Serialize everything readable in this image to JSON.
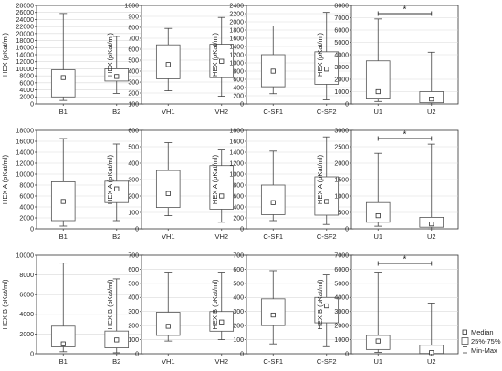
{
  "legend": {
    "items": [
      {
        "label": "Median",
        "symbol": "square"
      },
      {
        "label": "25%-75%",
        "symbol": "box"
      },
      {
        "label": "Min-Max",
        "symbol": "whisker"
      }
    ],
    "placement": "bottom-right"
  },
  "chart_data": [
    {
      "type": "box",
      "ylabel": "HEX (pKat/ml)",
      "ylim": [
        0,
        28000
      ],
      "yticks": [
        0,
        2000,
        4000,
        6000,
        8000,
        10000,
        12000,
        14000,
        16000,
        18000,
        20000,
        22000,
        24000,
        26000,
        28000
      ],
      "categories": [
        "B1",
        "B2"
      ],
      "grid": true,
      "series": [
        {
          "min": 1000,
          "q1": 2000,
          "median": 7500,
          "q3": 9700,
          "max": 25700
        },
        {
          "min": 3000,
          "q1": 6500,
          "median": 7800,
          "q3": 10000,
          "max": 19200
        }
      ]
    },
    {
      "type": "box",
      "ylabel": "HEX (pKat/ml)",
      "ylim": [
        100,
        1000
      ],
      "yticks": [
        100,
        200,
        300,
        400,
        500,
        600,
        700,
        800,
        900,
        1000
      ],
      "categories": [
        "VH1",
        "VH2"
      ],
      "grid": true,
      "series": [
        {
          "min": 220,
          "q1": 330,
          "median": 460,
          "q3": 640,
          "max": 790
        },
        {
          "min": 170,
          "q1": 340,
          "median": 490,
          "q3": 645,
          "max": 890
        }
      ]
    },
    {
      "type": "box",
      "ylabel": "HEX (pKat/ml)",
      "ylim": [
        0,
        2400
      ],
      "yticks": [
        0,
        200,
        400,
        600,
        800,
        1000,
        1200,
        1400,
        1600,
        1800,
        2000,
        2200,
        2400
      ],
      "categories": [
        "C-SF1",
        "C-SF2"
      ],
      "grid": true,
      "series": [
        {
          "min": 250,
          "q1": 420,
          "median": 800,
          "q3": 1200,
          "max": 1900
        },
        {
          "min": 100,
          "q1": 480,
          "median": 850,
          "q3": 1270,
          "max": 2230
        }
      ]
    },
    {
      "type": "box",
      "ylabel": "HEX (pKat/ml)",
      "ylim": [
        0,
        8000
      ],
      "yticks": [
        0,
        1000,
        2000,
        3000,
        4000,
        5000,
        6000,
        7000,
        8000
      ],
      "categories": [
        "U1",
        "U2"
      ],
      "grid": true,
      "significance": "*",
      "series": [
        {
          "min": 200,
          "q1": 400,
          "median": 1000,
          "q3": 3500,
          "max": 6900
        },
        {
          "min": 0,
          "q1": 100,
          "median": 400,
          "q3": 1000,
          "max": 4200
        }
      ]
    },
    {
      "type": "box",
      "ylabel": "HEX A (pKat/ml)",
      "ylim": [
        0,
        18000
      ],
      "yticks": [
        0,
        2000,
        4000,
        6000,
        8000,
        10000,
        12000,
        14000,
        16000,
        18000
      ],
      "categories": [
        "B1",
        "B2"
      ],
      "grid": true,
      "series": [
        {
          "min": 500,
          "q1": 1500,
          "median": 5000,
          "q3": 8600,
          "max": 16500
        },
        {
          "min": 1500,
          "q1": 4800,
          "median": 7300,
          "q3": 8700,
          "max": 15500
        }
      ]
    },
    {
      "type": "box",
      "ylabel": "HEX A (pKat/ml)",
      "ylim": [
        0,
        600
      ],
      "yticks": [
        0,
        100,
        200,
        300,
        400,
        500,
        600
      ],
      "categories": [
        "VH1",
        "VH2"
      ],
      "grid": true,
      "series": [
        {
          "min": 80,
          "q1": 130,
          "median": 215,
          "q3": 355,
          "max": 525
        },
        {
          "min": 40,
          "q1": 120,
          "median": 200,
          "q3": 385,
          "max": 480
        }
      ]
    },
    {
      "type": "box",
      "ylabel": "HEX A (pKat/ml)",
      "ylim": [
        0,
        1800
      ],
      "yticks": [
        0,
        200,
        400,
        600,
        800,
        1000,
        1200,
        1400,
        1600,
        1800
      ],
      "categories": [
        "C-SF1",
        "C-SF2"
      ],
      "grid": true,
      "series": [
        {
          "min": 150,
          "q1": 260,
          "median": 480,
          "q3": 800,
          "max": 1420
        },
        {
          "min": 80,
          "q1": 250,
          "median": 500,
          "q3": 950,
          "max": 1680
        }
      ]
    },
    {
      "type": "box",
      "ylabel": "HEX A (pKat/ml)",
      "ylim": [
        0,
        3000
      ],
      "yticks": [
        0,
        500,
        1000,
        1500,
        2000,
        2500,
        3000
      ],
      "categories": [
        "U1",
        "U2"
      ],
      "grid": true,
      "significance": "*",
      "series": [
        {
          "min": 80,
          "q1": 200,
          "median": 400,
          "q3": 800,
          "max": 2300
        },
        {
          "min": 0,
          "q1": 50,
          "median": 150,
          "q3": 350,
          "max": 2580
        }
      ]
    },
    {
      "type": "box",
      "ylabel": "HEX B (pKat/ml)",
      "ylim": [
        0,
        10000
      ],
      "yticks": [
        0,
        2000,
        4000,
        6000,
        8000,
        10000
      ],
      "categories": [
        "B1",
        "B2"
      ],
      "grid": true,
      "series": [
        {
          "min": 200,
          "q1": 700,
          "median": 1000,
          "q3": 2800,
          "max": 9200
        },
        {
          "min": 100,
          "q1": 600,
          "median": 1400,
          "q3": 2300,
          "max": 7600
        }
      ]
    },
    {
      "type": "box",
      "ylabel": "HEX B (pKat/ml)",
      "ylim": [
        0,
        700
      ],
      "yticks": [
        0,
        100,
        200,
        300,
        400,
        500,
        600,
        700
      ],
      "categories": [
        "VH1",
        "VH2"
      ],
      "grid": true,
      "series": [
        {
          "min": 90,
          "q1": 130,
          "median": 195,
          "q3": 295,
          "max": 580
        },
        {
          "min": 100,
          "q1": 160,
          "median": 225,
          "q3": 300,
          "max": 580
        }
      ]
    },
    {
      "type": "box",
      "ylabel": "HEX B (pKat/ml)",
      "ylim": [
        0,
        700
      ],
      "yticks": [
        0,
        100,
        200,
        300,
        400,
        500,
        600,
        700
      ],
      "categories": [
        "C-SF1",
        "C-SF2"
      ],
      "grid": true,
      "series": [
        {
          "min": 70,
          "q1": 200,
          "median": 275,
          "q3": 390,
          "max": 590
        },
        {
          "min": 50,
          "q1": 220,
          "median": 340,
          "q3": 400,
          "max": 560
        }
      ]
    },
    {
      "type": "box",
      "ylabel": "HEX B (pKat/ml)",
      "ylim": [
        0,
        7000
      ],
      "yticks": [
        0,
        1000,
        2000,
        3000,
        4000,
        5000,
        6000,
        7000
      ],
      "categories": [
        "U1",
        "U2"
      ],
      "grid": true,
      "significance": "*",
      "series": [
        {
          "min": 100,
          "q1": 300,
          "median": 900,
          "q3": 1300,
          "max": 5800
        },
        {
          "min": 0,
          "q1": 20,
          "median": 80,
          "q3": 600,
          "max": 3600
        }
      ]
    }
  ]
}
